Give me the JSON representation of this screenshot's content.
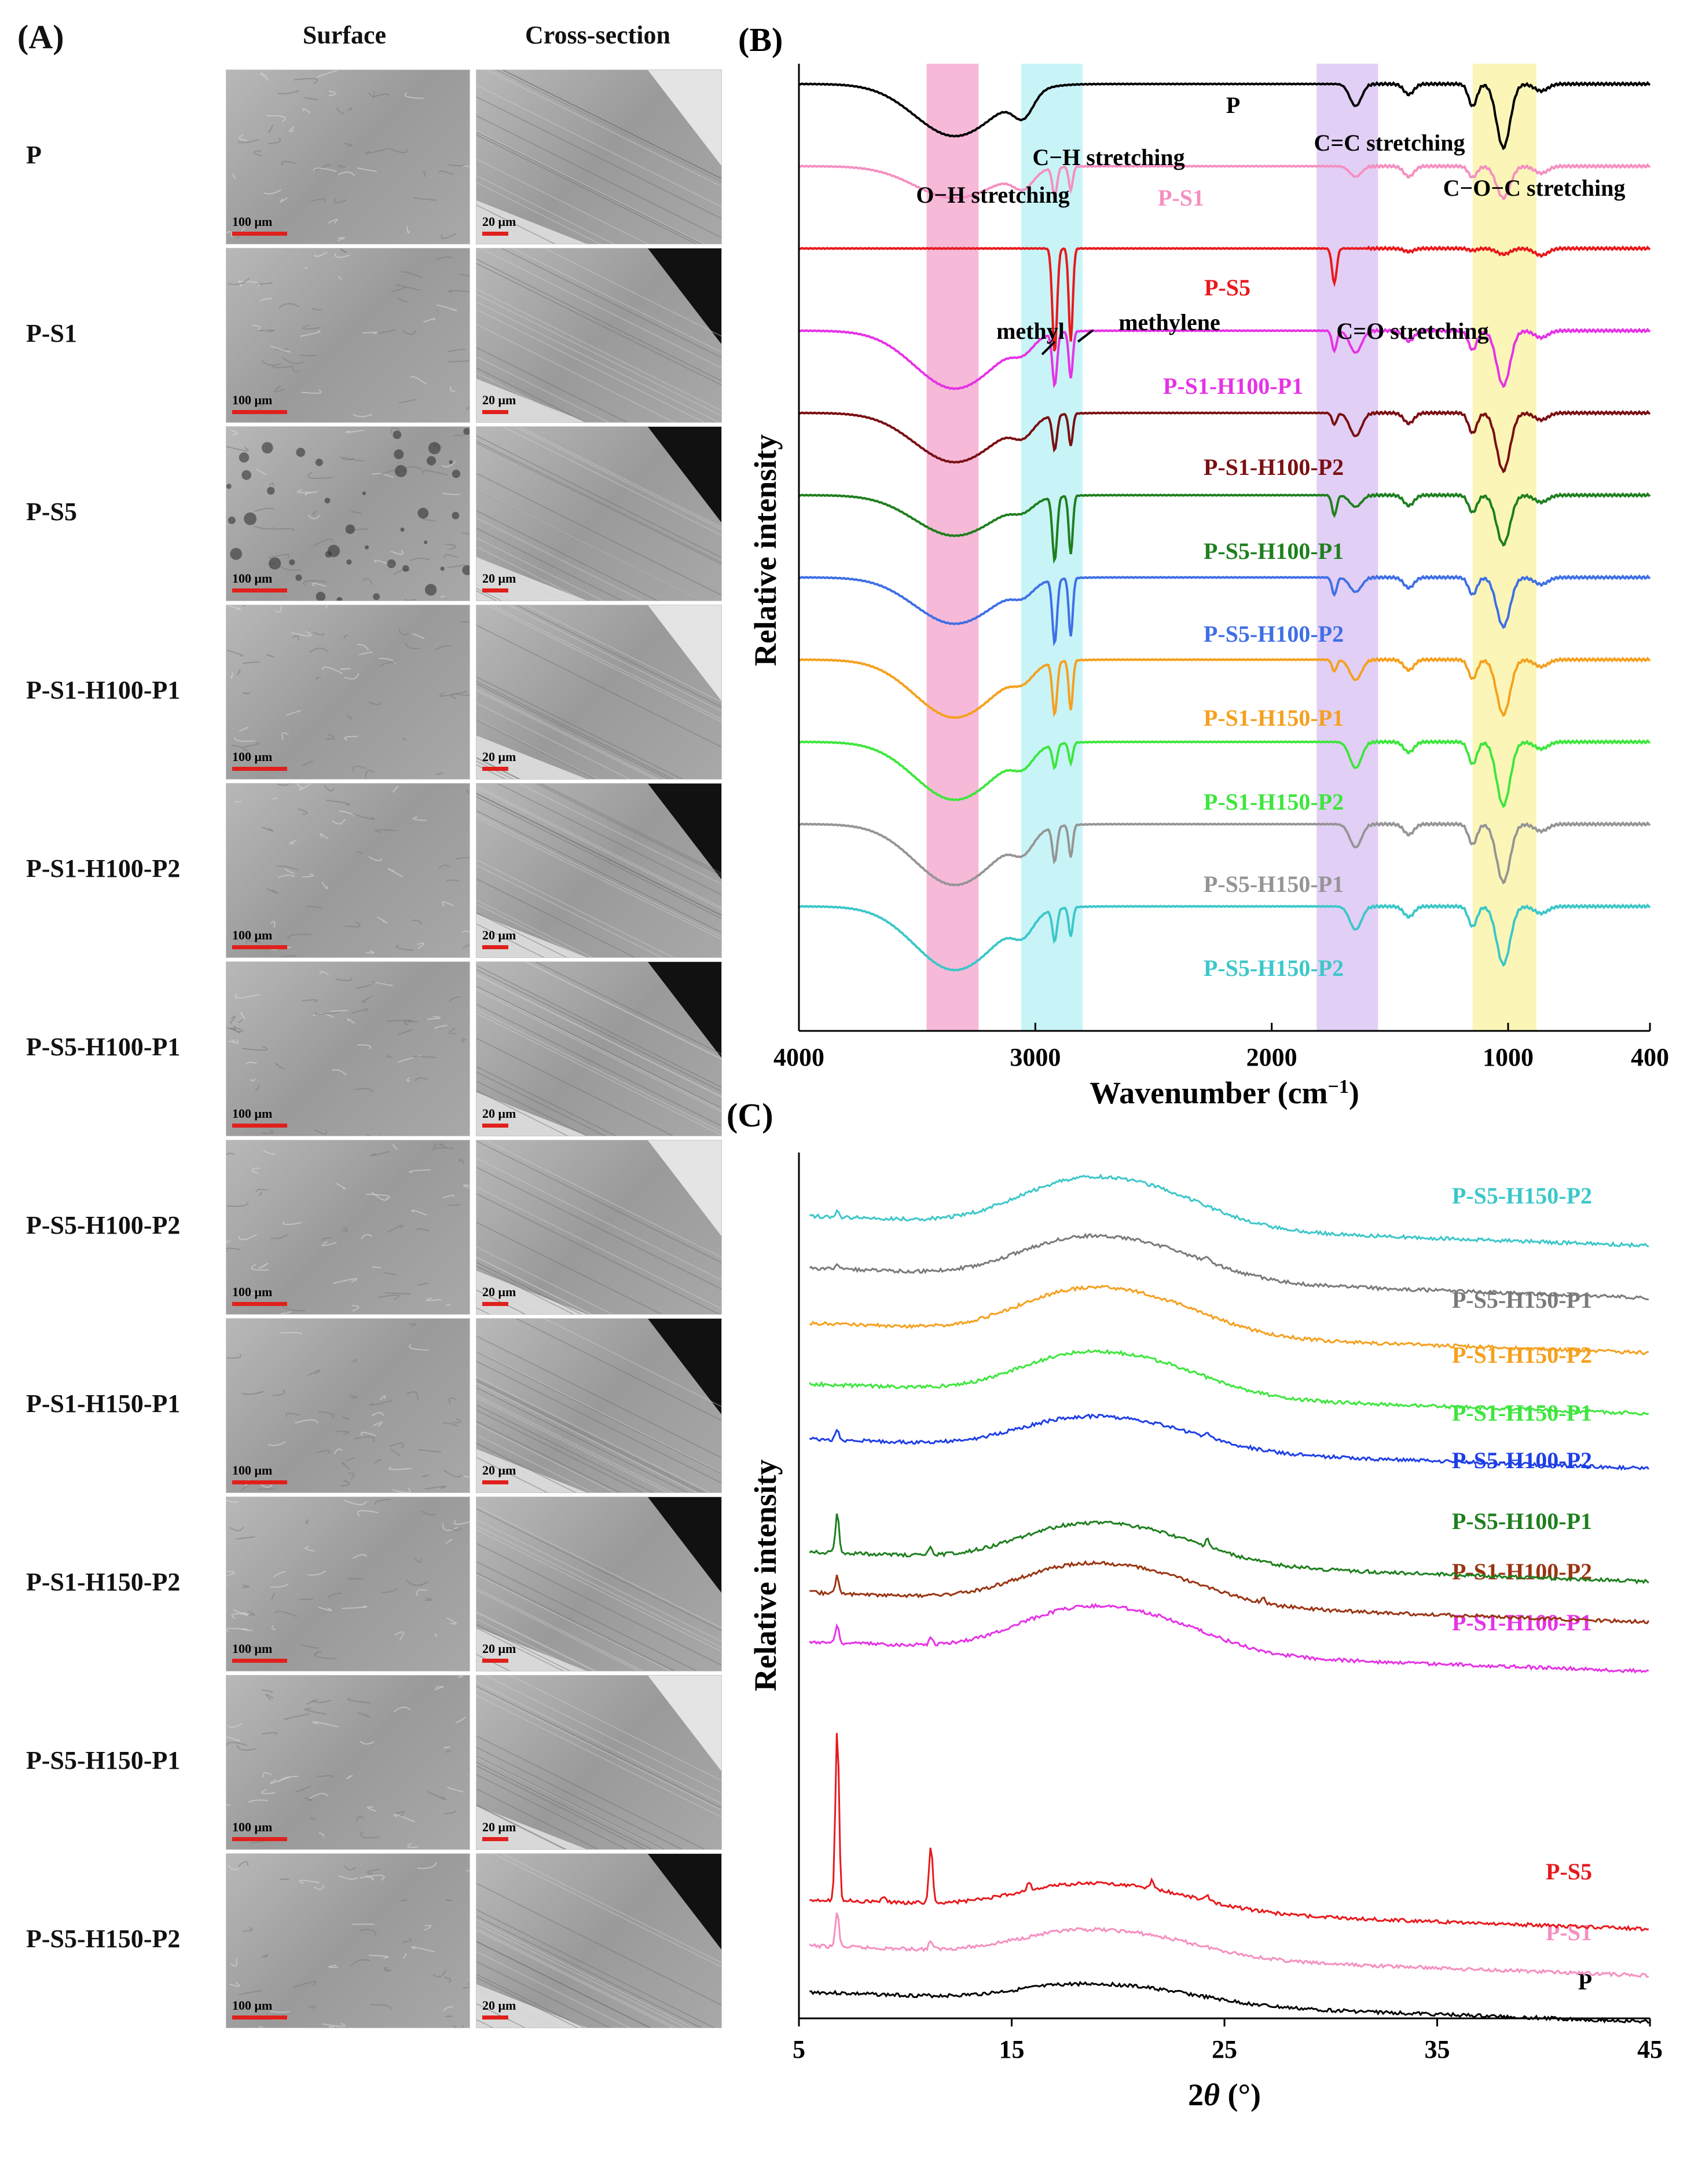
{
  "panel_a": {
    "label": "(A)",
    "col_surface": "Surface",
    "col_cross": "Cross-section",
    "surface_scale": "100 μm",
    "cross_scale": "20 μm",
    "rows": [
      "P",
      "P-S1",
      "P-S5",
      "P-S1-H100-P1",
      "P-S1-H100-P2",
      "P-S5-H100-P1",
      "P-S5-H100-P2",
      "P-S1-H150-P1",
      "P-S1-H150-P2",
      "P-S5-H150-P1",
      "P-S5-H150-P2"
    ]
  },
  "chart_data": [
    {
      "panel": "(B)",
      "type": "line",
      "title": "",
      "xlabel": "Wavenumber (cm",
      "xlabel_sup": "−1",
      "xlabel_close": ")",
      "ylabel": "Relative intensity",
      "xlim": [
        4000,
        400
      ],
      "xticks": [
        4000,
        3000,
        2000,
        1000,
        400
      ],
      "bands": [
        {
          "name": "O−H stretching",
          "range": [
            3460,
            3240
          ],
          "color": "#f7b9d8"
        },
        {
          "name": "C−H stretching",
          "range": [
            3060,
            2800
          ],
          "color": "#c8f4f7"
        },
        {
          "name": "C=C / C=O stretching",
          "range": [
            1810,
            1550
          ],
          "color": "#e2cff6"
        },
        {
          "name": "C−O−C stretching",
          "range": [
            1150,
            880
          ],
          "color": "#fbf6b8"
        }
      ],
      "annotations": [
        "O−H stretching",
        "C−H stretching",
        "C=C stretching",
        "C−O−C stretching",
        "methyl",
        "methylene",
        "C=O stretching"
      ],
      "series": [
        {
          "name": "P",
          "color": "#000000",
          "offset": 0,
          "oh": 90,
          "ch": 40,
          "c2": 0,
          "cc": 38,
          "coc": 110,
          "ch3": 0,
          "ch2": 0
        },
        {
          "name": "P-S1",
          "color": "#f58fc0",
          "offset": 1,
          "oh": 55,
          "ch": 28,
          "c2": 0,
          "cc": 18,
          "coc": 55,
          "ch3": 50,
          "ch2": 40
        },
        {
          "name": "P-S5",
          "color": "#e8191c",
          "offset": 2,
          "oh": 0,
          "ch": 0,
          "c2": 60,
          "cc": 0,
          "coc": 10,
          "ch3": 180,
          "ch2": 160
        },
        {
          "name": "P-S1-H100-P1",
          "color": "#e632e6",
          "offset": 3,
          "oh": 100,
          "ch": 20,
          "c2": 35,
          "cc": 38,
          "coc": 95,
          "ch3": 90,
          "ch2": 80
        },
        {
          "name": "P-S1-H100-P2",
          "color": "#7a0f12",
          "offset": 4,
          "oh": 85,
          "ch": 25,
          "c2": 20,
          "cc": 40,
          "coc": 100,
          "ch3": 60,
          "ch2": 55
        },
        {
          "name": "P-S5-H100-P1",
          "color": "#1e7f1e",
          "offset": 5,
          "oh": 70,
          "ch": 15,
          "c2": 35,
          "cc": 20,
          "coc": 85,
          "ch3": 110,
          "ch2": 100
        },
        {
          "name": "P-S5-H100-P2",
          "color": "#3f6fe6",
          "offset": 6,
          "oh": 80,
          "ch": 18,
          "c2": 30,
          "cc": 25,
          "coc": 85,
          "ch3": 110,
          "ch2": 100
        },
        {
          "name": "P-S1-H150-P1",
          "color": "#f5a01e",
          "offset": 7,
          "oh": 100,
          "ch": 20,
          "c2": 20,
          "cc": 35,
          "coc": 95,
          "ch3": 90,
          "ch2": 85
        },
        {
          "name": "P-S1-H150-P2",
          "color": "#3de63d",
          "offset": 8,
          "oh": 100,
          "ch": 25,
          "c2": 0,
          "cc": 45,
          "coc": 110,
          "ch3": 40,
          "ch2": 35
        },
        {
          "name": "P-S5-H150-P1",
          "color": "#959595",
          "offset": 9,
          "oh": 105,
          "ch": 30,
          "c2": 0,
          "cc": 40,
          "coc": 100,
          "ch3": 60,
          "ch2": 55
        },
        {
          "name": "P-S5-H150-P2",
          "color": "#3cc7c9",
          "offset": 10,
          "oh": 110,
          "ch": 30,
          "c2": 0,
          "cc": 40,
          "coc": 100,
          "ch3": 55,
          "ch2": 50
        }
      ]
    },
    {
      "panel": "(C)",
      "type": "line",
      "title": "",
      "xlabel": "2θ (°)",
      "xlabel_pre": "2",
      "xlabel_theta": "θ",
      "xlabel_post": " (°)",
      "ylabel": "Relative intensity",
      "xlim": [
        5,
        45
      ],
      "xticks": [
        5,
        15,
        25,
        35,
        45
      ],
      "series": [
        {
          "name": "P",
          "color": "#000000",
          "level": 0,
          "amp": 28,
          "peaks": []
        },
        {
          "name": "P-S1",
          "color": "#f58fc0",
          "level": 1,
          "amp": 40,
          "peaks": [
            [
              6.8,
              60
            ],
            [
              11.2,
              15
            ]
          ]
        },
        {
          "name": "P-S5",
          "color": "#e8191c",
          "level": 2,
          "amp": 40,
          "peaks": [
            [
              6.8,
              300
            ],
            [
              9.0,
              10
            ],
            [
              11.2,
              100
            ],
            [
              15.8,
              15
            ],
            [
              21.6,
              15
            ],
            [
              24.2,
              10
            ]
          ]
        },
        {
          "name": "P-S1-H100-P1",
          "color": "#e632e6",
          "level": 3,
          "amp": 70,
          "peaks": [
            [
              6.8,
              30
            ],
            [
              11.2,
              10
            ]
          ]
        },
        {
          "name": "P-S1-H100-P2",
          "color": "#9a3412",
          "level": 4,
          "amp": 60,
          "peaks": [
            [
              6.8,
              30
            ],
            [
              26.8,
              10
            ]
          ]
        },
        {
          "name": "P-S5-H100-P1",
          "color": "#1e7f1e",
          "level": 5,
          "amp": 60,
          "peaks": [
            [
              6.8,
              70
            ],
            [
              11.2,
              15
            ],
            [
              24.2,
              15
            ]
          ]
        },
        {
          "name": "P-S5-H100-P2",
          "color": "#1e3fe6",
          "level": 6,
          "amp": 50,
          "peaks": [
            [
              6.8,
              15
            ],
            [
              24.2,
              10
            ]
          ]
        },
        {
          "name": "P-S1-H150-P1",
          "color": "#3de63d",
          "level": 7,
          "amp": 65,
          "peaks": []
        },
        {
          "name": "P-S1-H150-P2",
          "color": "#f5a01e",
          "level": 8,
          "amp": 70,
          "peaks": []
        },
        {
          "name": "P-S5-H150-P1",
          "color": "#7a7a7a",
          "level": 9,
          "amp": 65,
          "peaks": [
            [
              6.8,
              10
            ],
            [
              24.2,
              10
            ]
          ]
        },
        {
          "name": "P-S5-H150-P2",
          "color": "#3cc7c9",
          "level": 10,
          "amp": 75,
          "peaks": [
            [
              6.8,
              10
            ]
          ]
        }
      ]
    }
  ]
}
